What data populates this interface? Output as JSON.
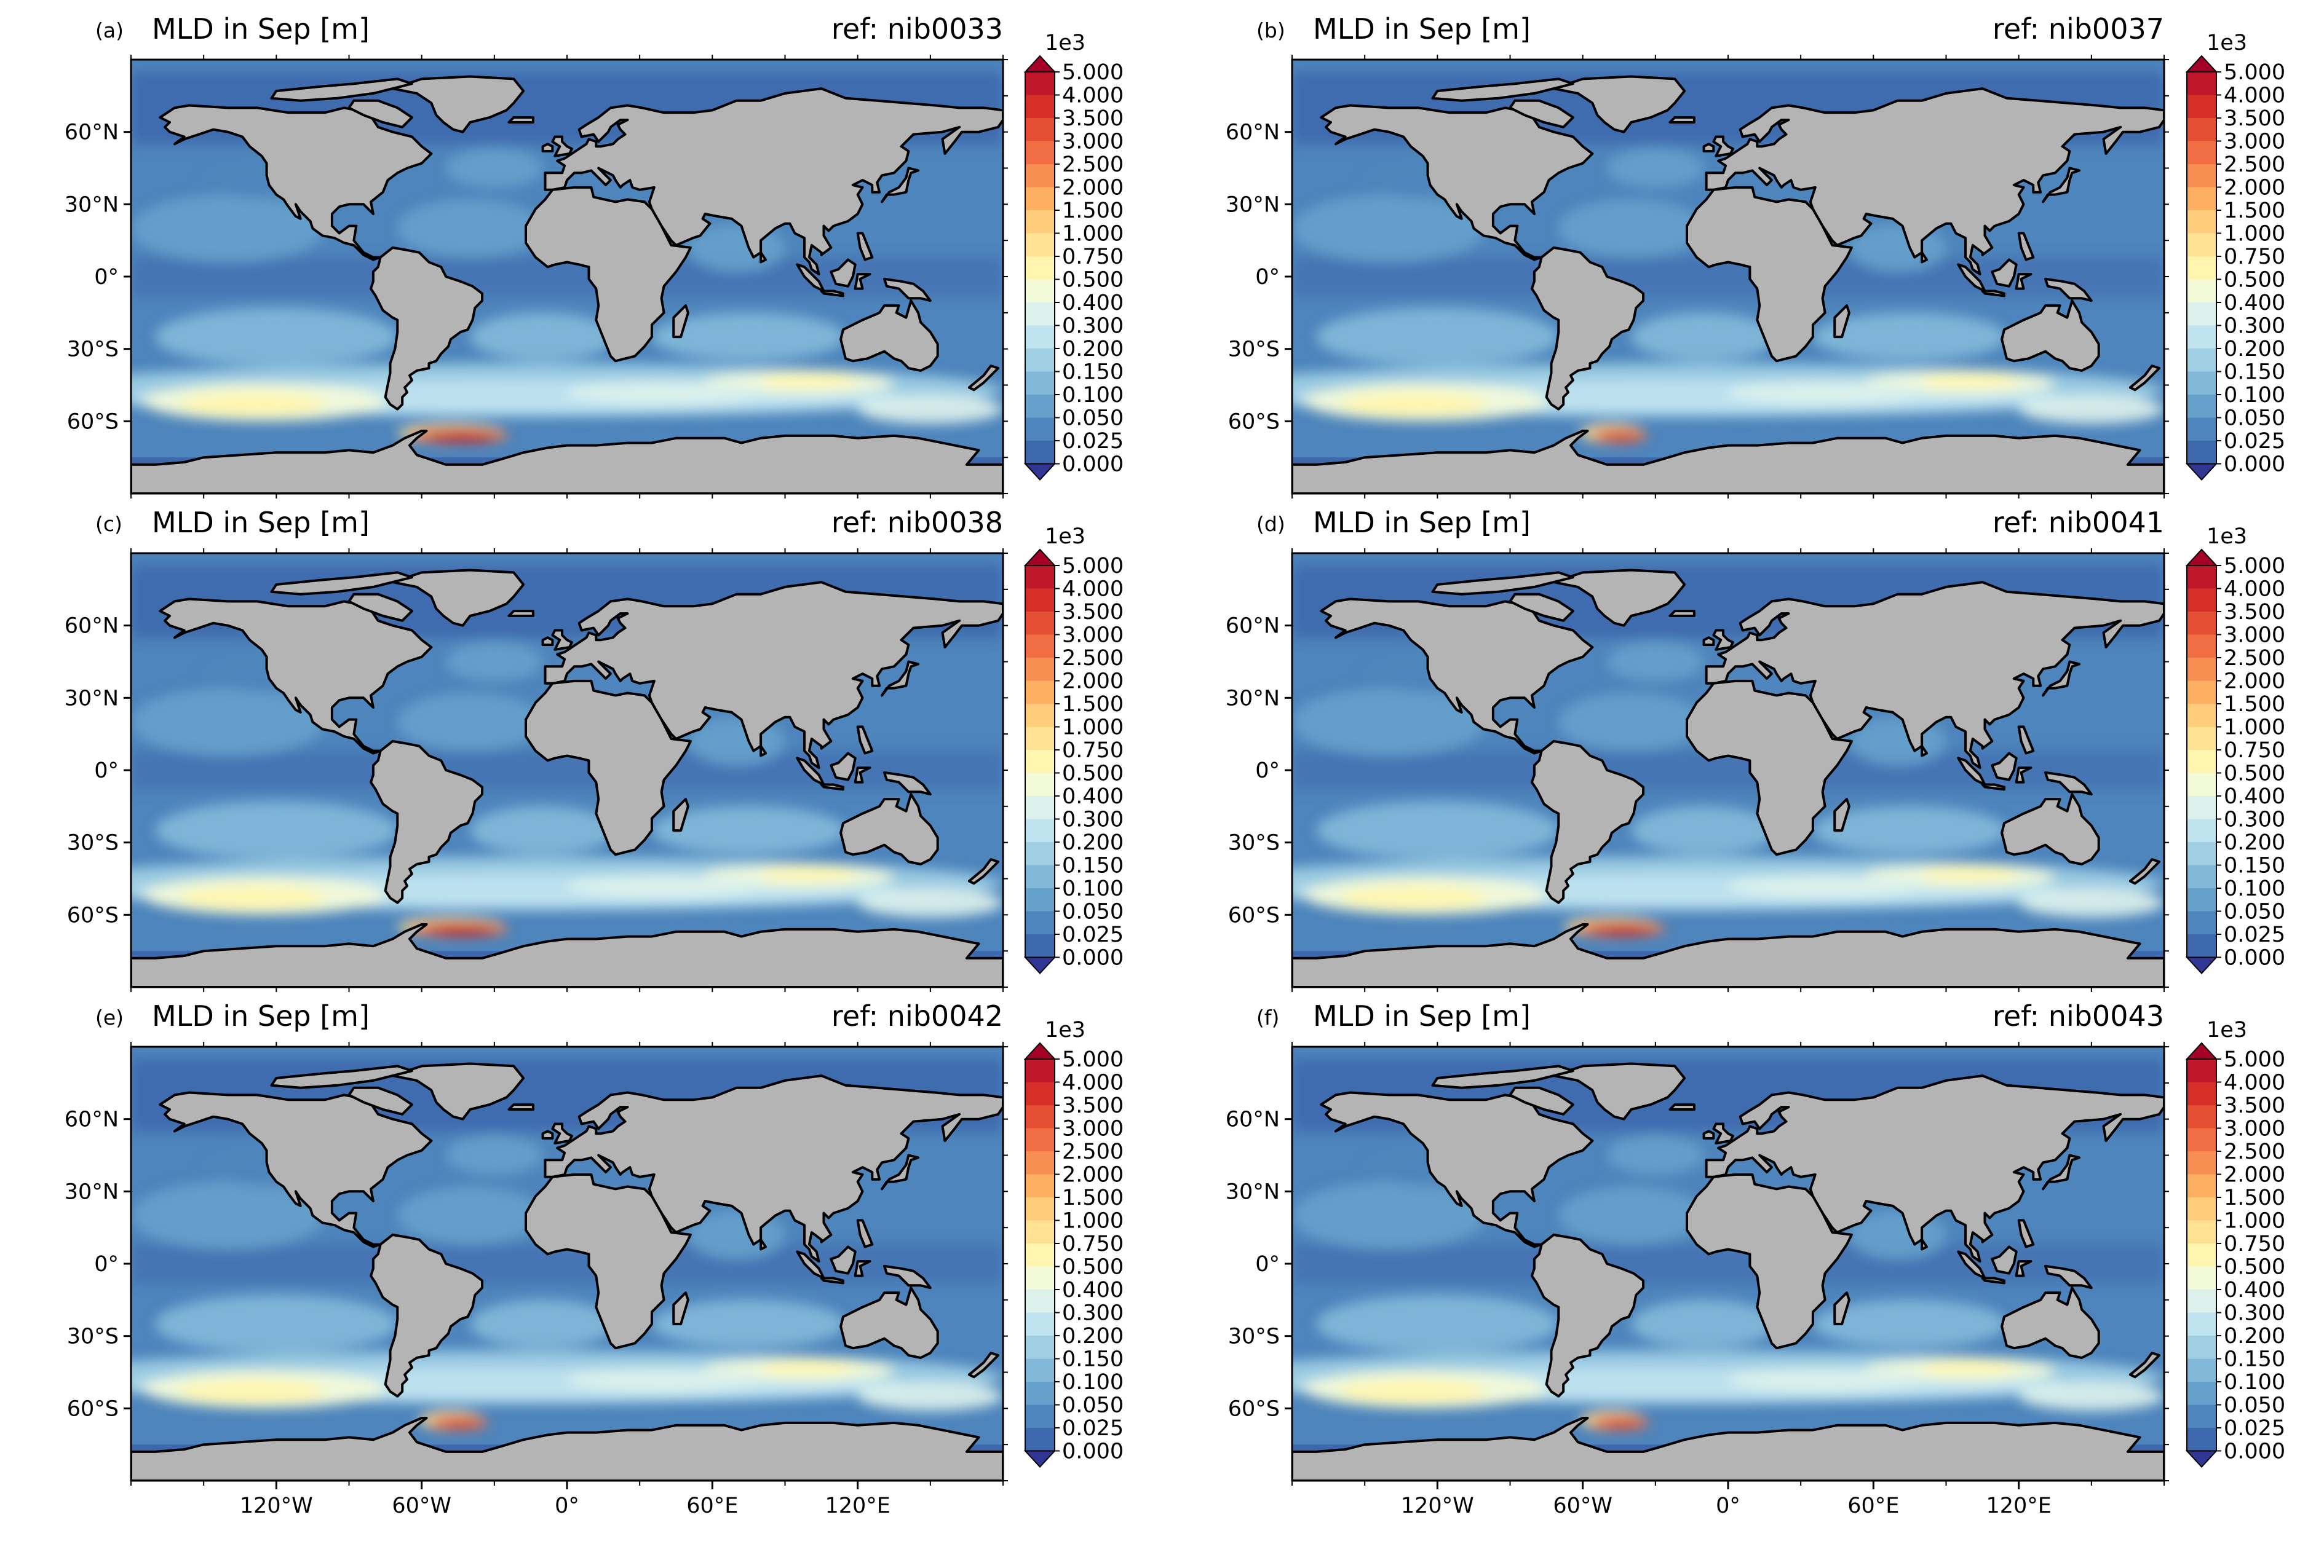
{
  "figure": {
    "panels": [
      {
        "letter": "(a)",
        "title": "MLD in Sep [m]",
        "ref": "ref: nib0033",
        "deep_core_strength": 1.0
      },
      {
        "letter": "(b)",
        "title": "MLD in Sep [m]",
        "ref": "ref: nib0037",
        "deep_core_strength": 0.45
      },
      {
        "letter": "(c)",
        "title": "MLD in Sep [m]",
        "ref": "ref: nib0038",
        "deep_core_strength": 1.0
      },
      {
        "letter": "(d)",
        "title": "MLD in Sep [m]",
        "ref": "ref: nib0041",
        "deep_core_strength": 0.9
      },
      {
        "letter": "(e)",
        "title": "MLD in Sep [m]",
        "ref": "ref: nib0042",
        "deep_core_strength": 0.5
      },
      {
        "letter": "(f)",
        "title": "MLD in Sep [m]",
        "ref": "ref: nib0043",
        "deep_core_strength": 0.5
      }
    ],
    "lat_ticks": [
      "60°N",
      "30°N",
      "0°",
      "30°S",
      "60°S"
    ],
    "lat_values": [
      60,
      30,
      0,
      -30,
      -60
    ],
    "lon_ticks": [
      "120°W",
      "60°W",
      "0°",
      "60°E",
      "120°E"
    ],
    "lon_values": [
      -120,
      -60,
      0,
      60,
      120
    ],
    "colorbar": {
      "multiplier": "1e3",
      "labels": [
        "5.000",
        "4.000",
        "3.500",
        "3.000",
        "2.500",
        "2.000",
        "1.500",
        "1.000",
        "0.750",
        "0.500",
        "0.400",
        "0.300",
        "0.200",
        "0.150",
        "0.100",
        "0.050",
        "0.025",
        "0.000"
      ],
      "colors": [
        "#a50026",
        "#c1172a",
        "#d62f27",
        "#e44f33",
        "#f16d43",
        "#f88f52",
        "#fdaf62",
        "#fecc7b",
        "#ffe293",
        "#fff5ae",
        "#f3fad8",
        "#dcf1ec",
        "#bfe3ef",
        "#a0cfe4",
        "#82b9d9",
        "#66a1cb",
        "#4e85bc",
        "#3e68ad",
        "#313695"
      ]
    },
    "land_color": "#b4b4b4",
    "lon_range": [
      -180,
      180
    ],
    "lat_range": [
      -90,
      90
    ]
  }
}
